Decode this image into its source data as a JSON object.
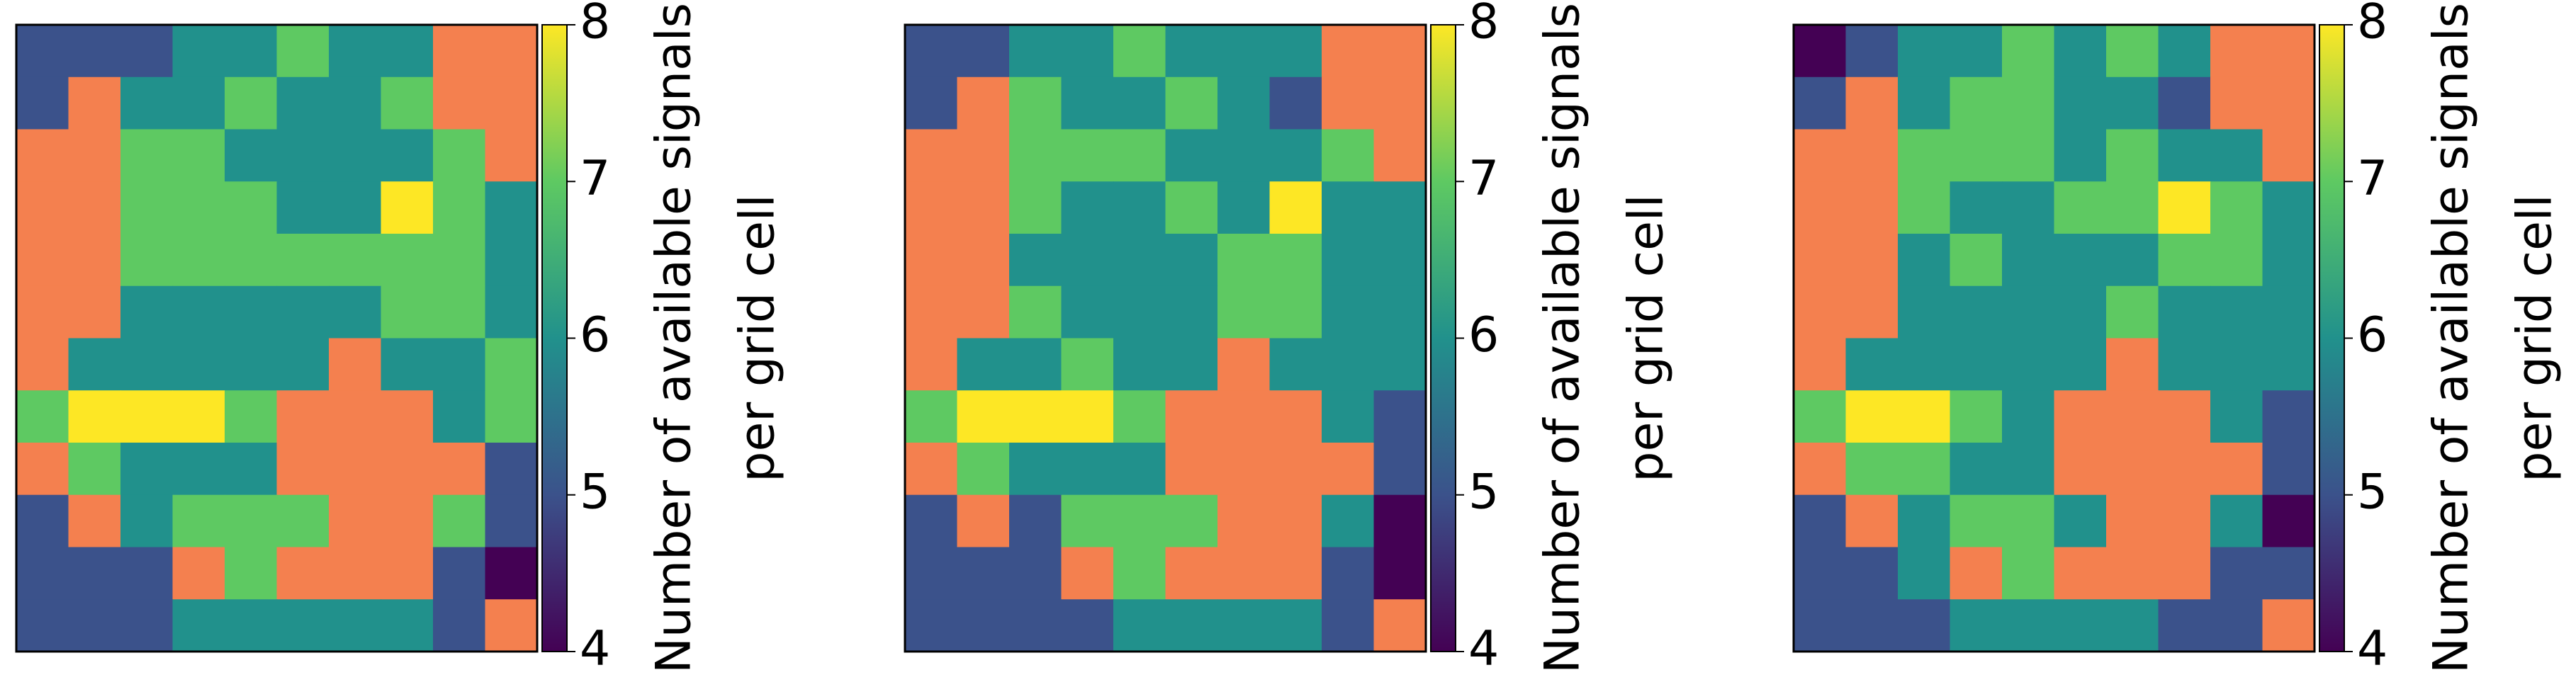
{
  "chart_data": [
    {
      "type": "heatmap",
      "colormap": "viridis",
      "land_color": "#f4804f",
      "clim": [
        4,
        8
      ],
      "cticks": [
        4,
        5,
        6,
        7,
        8
      ],
      "colorbar_label": [
        "Number of available signals",
        "per grid cell"
      ],
      "grid": [
        [
          5,
          5,
          5,
          6,
          6,
          7,
          6,
          6,
          null,
          null
        ],
        [
          5,
          null,
          6,
          6,
          7,
          6,
          6,
          7,
          null,
          null
        ],
        [
          null,
          null,
          7,
          7,
          6,
          6,
          6,
          6,
          7,
          null
        ],
        [
          null,
          null,
          7,
          7,
          7,
          6,
          6,
          8,
          7,
          6
        ],
        [
          null,
          null,
          7,
          7,
          7,
          7,
          7,
          7,
          7,
          6
        ],
        [
          null,
          null,
          6,
          6,
          6,
          6,
          6,
          7,
          7,
          6
        ],
        [
          null,
          6,
          6,
          6,
          6,
          6,
          null,
          6,
          6,
          7
        ],
        [
          7,
          8,
          8,
          8,
          7,
          null,
          null,
          null,
          6,
          7
        ],
        [
          null,
          7,
          6,
          6,
          6,
          null,
          null,
          null,
          null,
          5
        ],
        [
          5,
          null,
          6,
          7,
          7,
          7,
          null,
          null,
          7,
          5
        ],
        [
          5,
          5,
          5,
          null,
          7,
          null,
          null,
          null,
          5,
          4
        ],
        [
          5,
          5,
          5,
          6,
          6,
          6,
          6,
          6,
          5,
          null
        ]
      ]
    },
    {
      "type": "heatmap",
      "colormap": "viridis",
      "land_color": "#f4804f",
      "clim": [
        4,
        8
      ],
      "cticks": [
        4,
        5,
        6,
        7,
        8
      ],
      "colorbar_label": [
        "Number of available signals",
        "per grid cell"
      ],
      "grid": [
        [
          5,
          5,
          6,
          6,
          7,
          6,
          6,
          6,
          null,
          null
        ],
        [
          5,
          null,
          7,
          6,
          6,
          7,
          6,
          5,
          null,
          null
        ],
        [
          null,
          null,
          7,
          7,
          7,
          6,
          6,
          6,
          7,
          null
        ],
        [
          null,
          null,
          7,
          6,
          6,
          7,
          6,
          8,
          6,
          6
        ],
        [
          null,
          null,
          6,
          6,
          6,
          6,
          7,
          7,
          6,
          6
        ],
        [
          null,
          null,
          7,
          6,
          6,
          6,
          7,
          7,
          6,
          6
        ],
        [
          null,
          6,
          6,
          7,
          6,
          6,
          null,
          6,
          6,
          6
        ],
        [
          7,
          8,
          8,
          8,
          7,
          null,
          null,
          null,
          6,
          5
        ],
        [
          null,
          7,
          6,
          6,
          6,
          null,
          null,
          null,
          null,
          5
        ],
        [
          5,
          null,
          5,
          7,
          7,
          7,
          null,
          null,
          6,
          4
        ],
        [
          5,
          5,
          5,
          null,
          7,
          null,
          null,
          null,
          5,
          4
        ],
        [
          5,
          5,
          5,
          5,
          6,
          6,
          6,
          6,
          5,
          null
        ]
      ]
    },
    {
      "type": "heatmap",
      "colormap": "viridis",
      "land_color": "#f4804f",
      "clim": [
        4,
        8
      ],
      "cticks": [
        4,
        5,
        6,
        7,
        8
      ],
      "colorbar_label": [
        "Number of available signals",
        "per grid cell"
      ],
      "grid": [
        [
          4,
          5,
          6,
          6,
          7,
          6,
          7,
          6,
          null,
          null
        ],
        [
          5,
          null,
          6,
          7,
          7,
          6,
          6,
          5,
          null,
          null
        ],
        [
          null,
          null,
          7,
          7,
          7,
          6,
          7,
          6,
          6,
          null
        ],
        [
          null,
          null,
          7,
          6,
          6,
          7,
          7,
          8,
          7,
          6
        ],
        [
          null,
          null,
          6,
          7,
          6,
          6,
          6,
          7,
          7,
          6
        ],
        [
          null,
          null,
          6,
          6,
          6,
          6,
          7,
          6,
          6,
          6
        ],
        [
          null,
          6,
          6,
          6,
          6,
          6,
          null,
          6,
          6,
          6
        ],
        [
          7,
          8,
          8,
          7,
          6,
          null,
          null,
          null,
          6,
          5
        ],
        [
          null,
          7,
          7,
          6,
          6,
          null,
          null,
          null,
          null,
          5
        ],
        [
          5,
          null,
          6,
          7,
          7,
          6,
          null,
          null,
          6,
          4
        ],
        [
          5,
          5,
          6,
          null,
          7,
          null,
          null,
          null,
          5,
          5
        ],
        [
          5,
          5,
          5,
          6,
          6,
          6,
          6,
          5,
          5,
          null
        ]
      ]
    }
  ]
}
